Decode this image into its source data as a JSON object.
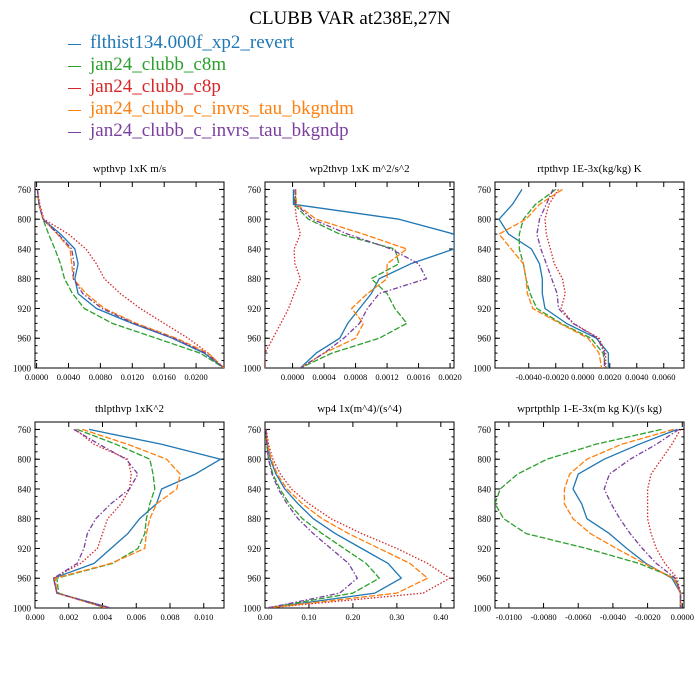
{
  "title": "CLUBB VAR at238E,27N",
  "legend": [
    {
      "label": "flthist134.000f_xp2_revert",
      "color": "#1f77b4"
    },
    {
      "label": "jan24_clubb_c8m",
      "color": "#2ca02c"
    },
    {
      "label": "jan24_clubb_c8p",
      "color": "#d62728"
    },
    {
      "label": "jan24_clubb_c_invrs_tau_bkgndm",
      "color": "#ff7f0e"
    },
    {
      "label": "jan24_clubb_c_invrs_tau_bkgndp",
      "color": "#7b3fa0"
    }
  ],
  "chart_data": [
    {
      "type": "line",
      "title": "wpthvp  1xK m/s",
      "xlim": [
        -0.0002,
        0.0235
      ],
      "ylim": [
        1000,
        750
      ],
      "xticks": [
        "0.0000",
        "0.0040",
        "0.0080",
        "0.0120",
        "0.0160",
        "0.0200"
      ],
      "xtick_values": [
        0,
        0.004,
        0.008,
        0.012,
        0.016,
        0.02
      ],
      "yticks": [
        760,
        800,
        840,
        880,
        920,
        960,
        1000
      ],
      "y": [
        760,
        780,
        800,
        820,
        840,
        860,
        880,
        900,
        920,
        940,
        960,
        980,
        1000
      ],
      "series": [
        {
          "values": [
            0.0001,
            0.0003,
            0.0008,
            0.003,
            0.0048,
            0.0052,
            0.0048,
            0.0052,
            0.0075,
            0.012,
            0.017,
            0.021,
            0.0235
          ],
          "style": "solid"
        },
        {
          "values": [
            0.0001,
            0.0003,
            0.0008,
            0.0015,
            0.0023,
            0.003,
            0.0035,
            0.0045,
            0.006,
            0.0095,
            0.015,
            0.0205,
            0.0235
          ],
          "style": "dash"
        },
        {
          "values": [
            0.0001,
            0.0004,
            0.0009,
            0.004,
            0.0062,
            0.0075,
            0.0085,
            0.0105,
            0.013,
            0.016,
            0.019,
            0.0215,
            0.0235
          ],
          "style": "dot"
        },
        {
          "values": [
            0.0001,
            0.0003,
            0.0008,
            0.0026,
            0.0042,
            0.0044,
            0.0046,
            0.0062,
            0.0085,
            0.0125,
            0.0175,
            0.0215,
            0.0235
          ],
          "style": "dash"
        },
        {
          "values": [
            0.0001,
            0.0003,
            0.0008,
            0.0027,
            0.0044,
            0.0047,
            0.0046,
            0.0058,
            0.0082,
            0.0122,
            0.0172,
            0.0212,
            0.0235
          ],
          "style": "dashdot"
        }
      ]
    },
    {
      "type": "line",
      "title": "wp2thvp  1xK m^2/s^2",
      "xlim": [
        -0.00035,
        0.00205
      ],
      "ylim": [
        1000,
        750
      ],
      "xticks": [
        "0.0000",
        "0.0004",
        "0.0008",
        "0.0012",
        "0.0016",
        "0.0020"
      ],
      "xtick_values": [
        0,
        0.0004,
        0.0008,
        0.0012,
        0.0016,
        0.002
      ],
      "yticks": [
        760,
        800,
        840,
        880,
        920,
        960,
        1000
      ],
      "y": [
        760,
        780,
        800,
        820,
        840,
        860,
        880,
        900,
        920,
        940,
        960,
        980,
        1000
      ],
      "series": [
        {
          "values": [
            1e-05,
            1e-05,
            0.00135,
            0.00205,
            0.00205,
            0.0015,
            0.0011,
            0.001,
            0.00085,
            0.0007,
            0.0006,
            0.0003,
            0.0001
          ],
          "style": "solid"
        },
        {
          "values": [
            4e-05,
            2e-05,
            0.0002,
            0.0006,
            0.0013,
            0.00135,
            0.001,
            0.0012,
            0.0013,
            0.00145,
            0.0011,
            0.0005,
            0.0001
          ],
          "style": "dash"
        },
        {
          "values": [
            4e-05,
            3e-05,
            5e-05,
            0.0001,
            2e-05,
            3e-05,
            0.0001,
            2e-05,
            -5e-05,
            -0.00015,
            -0.00025,
            -0.00035,
            -0.00035
          ],
          "style": "dot"
        },
        {
          "values": [
            4e-05,
            5e-05,
            0.0003,
            0.0009,
            0.00145,
            0.0012,
            0.0012,
            0.00095,
            0.00075,
            0.0009,
            0.0008,
            0.0004,
            0.0001
          ],
          "style": "dash"
        },
        {
          "values": [
            3e-05,
            4e-05,
            0.00025,
            0.0007,
            0.00125,
            0.0016,
            0.0017,
            0.0011,
            0.00095,
            0.00085,
            0.00065,
            0.0004,
            0.0001
          ],
          "style": "dashdot"
        }
      ]
    },
    {
      "type": "line",
      "title": "rtpthvp  1E-3x(kg/kg) K",
      "xlim": [
        -0.0065,
        0.0075
      ],
      "ylim": [
        1000,
        750
      ],
      "xticks": [
        "-0.0040",
        "-0.0020",
        "0.0000",
        "0.0020",
        "0.0040",
        "0.0060"
      ],
      "xtick_values": [
        -0.004,
        -0.002,
        0,
        0.002,
        0.004,
        0.006
      ],
      "yticks": [
        760,
        800,
        840,
        880,
        920,
        960,
        1000
      ],
      "y": [
        760,
        780,
        800,
        820,
        840,
        860,
        880,
        900,
        920,
        940,
        960,
        980,
        1000
      ],
      "series": [
        {
          "values": [
            -0.0045,
            -0.0052,
            -0.0062,
            -0.0055,
            -0.0038,
            -0.0032,
            -0.003,
            -0.003,
            -0.0028,
            -0.0012,
            0.001,
            0.0019,
            0.0019
          ],
          "style": "solid"
        },
        {
          "values": [
            -0.002,
            -0.0035,
            -0.0044,
            -0.0047,
            -0.0047,
            -0.0044,
            -0.0042,
            -0.0039,
            -0.0034,
            -0.0016,
            0.0006,
            0.0015,
            0.0017
          ],
          "style": "dash"
        },
        {
          "values": [
            -0.0018,
            -0.0025,
            -0.0028,
            -0.0027,
            -0.0024,
            -0.0021,
            -0.0015,
            -0.0013,
            -0.0016,
            -0.0007,
            0.0012,
            0.0017,
            0.0017
          ],
          "style": "dot"
        },
        {
          "values": [
            -0.0015,
            -0.0032,
            -0.0042,
            -0.0062,
            -0.0053,
            -0.0044,
            -0.0042,
            -0.0041,
            -0.0037,
            -0.0017,
            0.0004,
            0.0012,
            0.0014
          ],
          "style": "dash"
        },
        {
          "values": [
            -0.0022,
            -0.0027,
            -0.0032,
            -0.0034,
            -0.0031,
            -0.0027,
            -0.0023,
            -0.0019,
            -0.0018,
            -0.0007,
            0.0011,
            0.0016,
            0.0016
          ],
          "style": "dashdot"
        }
      ]
    },
    {
      "type": "line",
      "title": "thlpthvp  1xK^2",
      "xlim": [
        0,
        0.0112
      ],
      "ylim": [
        1000,
        750
      ],
      "xticks": [
        "0.000",
        "0.002",
        "0.004",
        "0.006",
        "0.008",
        "0.010"
      ],
      "xtick_values": [
        0,
        0.002,
        0.004,
        0.006,
        0.008,
        0.01
      ],
      "yticks": [
        760,
        800,
        840,
        880,
        920,
        960,
        1000
      ],
      "y": [
        760,
        780,
        800,
        820,
        840,
        860,
        880,
        900,
        920,
        940,
        960,
        980,
        1000
      ],
      "series": [
        {
          "values": [
            0.0032,
            0.0075,
            0.011,
            0.0095,
            0.0075,
            0.0072,
            0.0062,
            0.0055,
            0.0045,
            0.0035,
            0.0011,
            0.0013,
            0.0045
          ],
          "style": "solid"
        },
        {
          "values": [
            0.0025,
            0.0048,
            0.0068,
            0.007,
            0.0071,
            0.0068,
            0.0066,
            0.0065,
            0.0061,
            0.0046,
            0.0013,
            0.0014,
            0.0042
          ],
          "style": "dash"
        },
        {
          "values": [
            0.0024,
            0.0035,
            0.0055,
            0.0057,
            0.0056,
            0.0051,
            0.0043,
            0.004,
            0.0037,
            0.0027,
            0.0011,
            0.0013,
            0.0045
          ],
          "style": "dot"
        },
        {
          "values": [
            0.0028,
            0.0055,
            0.0078,
            0.0086,
            0.0084,
            0.0072,
            0.0068,
            0.0066,
            0.0065,
            0.0045,
            0.0012,
            0.0013,
            0.0042
          ],
          "style": "dash"
        },
        {
          "values": [
            0.0023,
            0.0038,
            0.0054,
            0.0061,
            0.0056,
            0.0045,
            0.0036,
            0.0031,
            0.0029,
            0.0025,
            0.0011,
            0.0013,
            0.0043
          ],
          "style": "dashdot"
        }
      ]
    },
    {
      "type": "line",
      "title": "wp4  1x(m^4)/(s^4)",
      "xlim": [
        0,
        0.43
      ],
      "ylim": [
        1000,
        750
      ],
      "xticks": [
        "0.00",
        "0.10",
        "0.20",
        "0.30",
        "0.40"
      ],
      "xtick_values": [
        0,
        0.1,
        0.2,
        0.3,
        0.4
      ],
      "yticks": [
        760,
        800,
        840,
        880,
        920,
        960,
        1000
      ],
      "y": [
        760,
        780,
        800,
        820,
        840,
        860,
        880,
        900,
        920,
        940,
        960,
        980,
        1000
      ],
      "series": [
        {
          "values": [
            0.002,
            0.006,
            0.012,
            0.025,
            0.045,
            0.075,
            0.11,
            0.16,
            0.22,
            0.28,
            0.31,
            0.25,
            0.005
          ],
          "style": "solid"
        },
        {
          "values": [
            0.002,
            0.004,
            0.008,
            0.018,
            0.034,
            0.055,
            0.085,
            0.13,
            0.18,
            0.23,
            0.26,
            0.2,
            0.005
          ],
          "style": "dash"
        },
        {
          "values": [
            0.003,
            0.008,
            0.018,
            0.035,
            0.06,
            0.1,
            0.15,
            0.22,
            0.3,
            0.37,
            0.42,
            0.36,
            0.005
          ],
          "style": "dot"
        },
        {
          "values": [
            0.002,
            0.006,
            0.014,
            0.028,
            0.05,
            0.085,
            0.13,
            0.19,
            0.26,
            0.33,
            0.37,
            0.3,
            0.005
          ],
          "style": "dash"
        },
        {
          "values": [
            0.002,
            0.004,
            0.008,
            0.016,
            0.03,
            0.05,
            0.075,
            0.11,
            0.15,
            0.19,
            0.21,
            0.17,
            0.005
          ],
          "style": "dashdot"
        }
      ]
    },
    {
      "type": "line",
      "title": "wprtpthlp  1-E-3x(m kg K)/(s kg)",
      "xlim": [
        -0.0108,
        0.0001
      ],
      "ylim": [
        1000,
        750
      ],
      "xticks": [
        "-0.0100",
        "-0.0080",
        "-0.0060",
        "-0.0040",
        "-0.0020",
        "0.0000"
      ],
      "xtick_values": [
        -0.01,
        -0.008,
        -0.006,
        -0.004,
        -0.002,
        0
      ],
      "yticks": [
        760,
        800,
        840,
        880,
        920,
        960,
        1000
      ],
      "y": [
        760,
        780,
        800,
        820,
        840,
        860,
        880,
        900,
        920,
        940,
        960,
        980,
        1000
      ],
      "series": [
        {
          "values": [
            -0.0003,
            -0.0025,
            -0.0045,
            -0.006,
            -0.0063,
            -0.0058,
            -0.0055,
            -0.0042,
            -0.0032,
            -0.0021,
            -0.0006,
            -0.0001,
            -0.0001
          ],
          "style": "solid"
        },
        {
          "values": [
            -0.0012,
            -0.005,
            -0.0078,
            -0.0095,
            -0.0105,
            -0.0108,
            -0.0103,
            -0.009,
            -0.0055,
            -0.0025,
            -0.0004,
            -0.0001,
            -0.0001
          ],
          "style": "dash"
        },
        {
          "values": [
            -0.0001,
            -0.0006,
            -0.0012,
            -0.0018,
            -0.002,
            -0.002,
            -0.002,
            -0.0018,
            -0.0015,
            -0.001,
            -0.0003,
            -0.0001,
            -0.0001
          ],
          "style": "dot"
        },
        {
          "values": [
            -0.0005,
            -0.0035,
            -0.0055,
            -0.0065,
            -0.0068,
            -0.0068,
            -0.0063,
            -0.0053,
            -0.0038,
            -0.0022,
            -0.0005,
            -0.0001,
            -0.0001
          ],
          "style": "dash"
        },
        {
          "values": [
            -0.0002,
            -0.0015,
            -0.003,
            -0.0042,
            -0.0045,
            -0.0041,
            -0.0036,
            -0.003,
            -0.0023,
            -0.0015,
            -0.0004,
            -0.0001,
            -0.0001
          ],
          "style": "dashdot"
        }
      ]
    }
  ]
}
